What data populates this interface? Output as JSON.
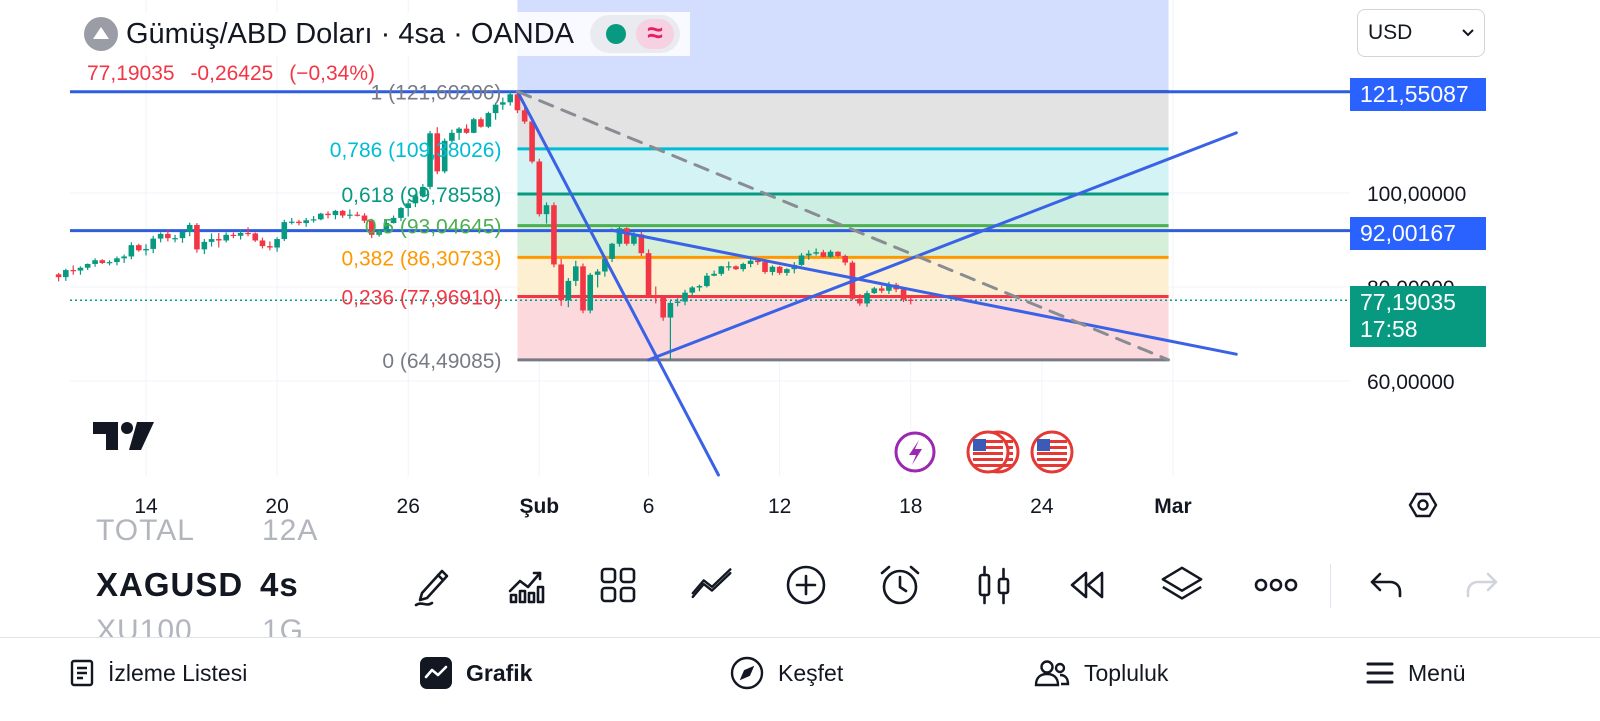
{
  "header": {
    "title": "Gümüş/ABD Doları · 4sa · OANDA",
    "wave_icon": "≈",
    "last_price": "77,19035",
    "change": "-0,26425",
    "change_pct": "(−0,34%)"
  },
  "currency_select": {
    "value": "USD",
    "icon": "chevron-down-icon"
  },
  "price_badges": [
    {
      "value": "121,55087",
      "color": "#2962ff"
    },
    {
      "value": "92,00167",
      "color": "#2962ff"
    },
    {
      "value": "77,19035",
      "sub": "17:58",
      "color": "#089981"
    }
  ],
  "chart_data": {
    "type": "candlestick",
    "x_tick_labels": [
      "14",
      "20",
      "26",
      "Şub",
      "6",
      "12",
      "18",
      "24",
      "Mar"
    ],
    "x_tick_days": [
      14,
      20,
      26,
      32,
      37,
      43,
      49,
      55,
      61
    ],
    "y_tick_labels": [
      "100,00000",
      "80,00000",
      "60,00000"
    ],
    "y_ticks": [
      100,
      80,
      60
    ],
    "ylim": [
      42.6,
      142.3
    ],
    "xlim": [
      10,
      66
    ],
    "current_price": 77.19035,
    "horizontal_lines": [
      121.55087,
      92.00167
    ],
    "fibonacci": {
      "x_range": [
        31.0,
        60.8
      ],
      "levels": [
        {
          "ratio": "1",
          "value": 121.60206,
          "label": "1 (121,60206)",
          "color": "#787b86"
        },
        {
          "ratio": "0,786",
          "value": 109.38026,
          "label": "0,786 (109,38026)",
          "color": "#00bcd4"
        },
        {
          "ratio": "0,618",
          "value": 99.78558,
          "label": "0,618 (99,78558)",
          "color": "#089981"
        },
        {
          "ratio": "0,5",
          "value": 93.04645,
          "label": "0,5 (93,04645)",
          "color": "#4caf50"
        },
        {
          "ratio": "0,382",
          "value": 86.30733,
          "label": "0,382 (86,30733)",
          "color": "#ff9800"
        },
        {
          "ratio": "0,236",
          "value": 77.9691,
          "label": "0,236 (77,96910)",
          "color": "#f23645"
        },
        {
          "ratio": "0",
          "value": 64.49085,
          "label": "0 (64,49085)",
          "color": "#787b86"
        }
      ]
    },
    "trend_lines": [
      {
        "from": [
          31.0,
          121.6
        ],
        "to": [
          40.2,
          40.0
        ],
        "style": "solid"
      },
      {
        "from": [
          35.3,
          92.1
        ],
        "to": [
          63.9,
          65.7
        ],
        "style": "solid"
      },
      {
        "from": [
          37.0,
          64.5
        ],
        "to": [
          63.9,
          112.8
        ],
        "style": "solid"
      },
      {
        "from": [
          31.0,
          121.6
        ],
        "to": [
          60.8,
          64.5
        ],
        "style": "dashed"
      }
    ],
    "candles": [
      [
        10.0,
        82.7,
        83.0,
        81.2,
        82.1
      ],
      [
        10.33,
        82.1,
        83.9,
        81.3,
        83.6
      ],
      [
        10.67,
        83.6,
        84.6,
        82.6,
        83.5
      ],
      [
        11.0,
        83.5,
        84.4,
        82.6,
        84.1
      ],
      [
        11.33,
        84.1,
        85.0,
        83.6,
        84.9
      ],
      [
        11.67,
        84.9,
        86.1,
        84.3,
        85.7
      ],
      [
        12.0,
        85.7,
        85.9,
        84.9,
        85.1
      ],
      [
        12.33,
        85.1,
        85.7,
        84.6,
        85.3
      ],
      [
        12.67,
        85.3,
        86.5,
        84.6,
        86.1
      ],
      [
        13.0,
        86.1,
        86.9,
        85.1,
        86.5
      ],
      [
        13.33,
        86.5,
        89.5,
        85.9,
        88.9
      ],
      [
        13.67,
        88.9,
        89.2,
        87.5,
        87.8
      ],
      [
        14.0,
        87.8,
        89.1,
        86.7,
        88.1
      ],
      [
        14.33,
        88.1,
        90.9,
        87.2,
        90.3
      ],
      [
        14.67,
        90.3,
        91.6,
        89.5,
        91.3
      ],
      [
        15.0,
        91.3,
        92.2,
        89.7,
        90.4
      ],
      [
        15.33,
        90.4,
        91.1,
        89.5,
        90.4
      ],
      [
        15.67,
        90.4,
        92.2,
        89.4,
        91.7
      ],
      [
        16.0,
        91.7,
        93.7,
        90.8,
        93.2
      ],
      [
        16.33,
        93.2,
        93.6,
        87.3,
        88.0
      ],
      [
        16.67,
        88.0,
        90.2,
        87.0,
        89.6
      ],
      [
        17.0,
        89.6,
        91.4,
        88.6,
        90.2
      ],
      [
        17.33,
        90.2,
        91.5,
        88.4,
        89.9
      ],
      [
        17.67,
        89.9,
        91.6,
        89.5,
        91.1
      ],
      [
        18.0,
        91.1,
        91.6,
        90.4,
        90.9
      ],
      [
        18.33,
        90.9,
        92.2,
        90.1,
        91.5
      ],
      [
        18.67,
        91.5,
        92.7,
        90.8,
        91.4
      ],
      [
        19.0,
        91.4,
        91.6,
        89.6,
        89.9
      ],
      [
        19.33,
        89.9,
        90.5,
        88.2,
        88.7
      ],
      [
        19.67,
        88.7,
        89.7,
        87.8,
        88.4
      ],
      [
        20.0,
        88.4,
        90.6,
        87.5,
        90.2
      ],
      [
        20.33,
        90.2,
        94.3,
        89.8,
        93.8
      ],
      [
        20.67,
        93.8,
        94.7,
        93.3,
        93.9
      ],
      [
        21.0,
        93.9,
        94.3,
        93.1,
        93.6
      ],
      [
        21.33,
        93.6,
        94.7,
        92.8,
        94.2
      ],
      [
        21.67,
        94.2,
        95.1,
        93.7,
        94.4
      ],
      [
        22.0,
        94.4,
        95.8,
        94.2,
        95.6
      ],
      [
        22.33,
        95.6,
        96.1,
        94.6,
        95.3
      ],
      [
        22.67,
        95.3,
        96.4,
        94.4,
        96.2
      ],
      [
        23.0,
        96.2,
        96.4,
        94.7,
        95.2
      ],
      [
        23.33,
        95.2,
        96.5,
        94.5,
        95.4
      ],
      [
        23.67,
        95.4,
        96.0,
        95.0,
        95.2
      ],
      [
        24.0,
        95.2,
        95.7,
        93.6,
        94.1
      ],
      [
        24.33,
        94.1,
        94.5,
        90.4,
        91.1
      ],
      [
        24.67,
        91.1,
        92.3,
        90.7,
        92.0
      ],
      [
        25.0,
        92.0,
        94.2,
        91.4,
        93.6
      ],
      [
        25.33,
        93.6,
        95.2,
        93.5,
        94.7
      ],
      [
        25.67,
        94.7,
        97.0,
        94.0,
        96.8
      ],
      [
        26.0,
        96.8,
        98.4,
        95.0,
        97.8
      ],
      [
        26.33,
        97.8,
        99.8,
        97.0,
        99.3
      ],
      [
        26.67,
        99.3,
        101.9,
        99.0,
        101.3
      ],
      [
        27.0,
        101.3,
        113.2,
        100.8,
        112.7
      ],
      [
        27.33,
        112.7,
        114.0,
        104.0,
        104.6
      ],
      [
        27.67,
        104.6,
        111.6,
        104.2,
        111.1
      ],
      [
        28.0,
        111.1,
        113.5,
        110.7,
        112.8
      ],
      [
        28.33,
        112.8,
        114.0,
        111.3,
        113.7
      ],
      [
        28.67,
        113.7,
        114.6,
        112.6,
        112.8
      ],
      [
        29.0,
        112.8,
        116.0,
        112.7,
        115.7
      ],
      [
        29.33,
        115.7,
        116.1,
        113.9,
        114.1
      ],
      [
        29.67,
        114.1,
        117.3,
        113.8,
        117.0
      ],
      [
        30.0,
        117.0,
        119.2,
        115.6,
        118.8
      ],
      [
        30.33,
        118.8,
        120.3,
        117.7,
        119.3
      ],
      [
        30.67,
        119.3,
        121.6,
        118.6,
        121.0
      ],
      [
        31.0,
        121.0,
        121.6,
        117.0,
        117.6
      ],
      [
        31.33,
        117.6,
        118.3,
        114.7,
        115.2
      ],
      [
        31.67,
        115.2,
        116.2,
        106.3,
        106.7
      ],
      [
        32.0,
        106.7,
        107.3,
        95.0,
        95.5
      ],
      [
        32.33,
        95.5,
        98.0,
        93.5,
        97.4
      ],
      [
        32.67,
        97.4,
        98.0,
        84.2,
        84.8
      ],
      [
        33.0,
        84.8,
        86.0,
        76.0,
        77.2
      ],
      [
        33.33,
        77.2,
        81.9,
        75.7,
        81.3
      ],
      [
        33.67,
        81.3,
        85.6,
        80.2,
        84.4
      ],
      [
        34.0,
        84.4,
        85.0,
        74.4,
        75.0
      ],
      [
        34.33,
        75.0,
        83.0,
        74.4,
        82.6
      ],
      [
        34.67,
        82.6,
        83.8,
        79.9,
        83.3
      ],
      [
        35.0,
        83.3,
        86.4,
        82.2,
        86.0
      ],
      [
        35.33,
        86.0,
        89.4,
        85.3,
        89.2
      ],
      [
        35.67,
        89.2,
        92.9,
        88.6,
        92.5
      ],
      [
        36.0,
        92.5,
        92.7,
        88.8,
        89.2
      ],
      [
        36.33,
        89.2,
        91.7,
        88.8,
        91.2
      ],
      [
        36.67,
        91.2,
        91.7,
        86.6,
        87.2
      ],
      [
        37.0,
        87.2,
        88.0,
        77.8,
        78.2
      ],
      [
        37.33,
        78.2,
        80.1,
        76.5,
        78.0
      ],
      [
        37.67,
        78.0,
        78.3,
        72.8,
        73.5
      ],
      [
        38.0,
        73.5,
        77.0,
        64.5,
        76.6
      ],
      [
        38.33,
        76.6,
        77.6,
        75.9,
        76.9
      ],
      [
        38.67,
        76.9,
        79.4,
        76.1,
        78.8
      ],
      [
        39.0,
        78.8,
        80.2,
        78.1,
        79.9
      ],
      [
        39.33,
        79.9,
        80.5,
        79.1,
        80.2
      ],
      [
        39.67,
        80.2,
        83.0,
        79.9,
        82.4
      ],
      [
        40.0,
        82.4,
        83.5,
        82.3,
        82.8
      ],
      [
        40.33,
        82.8,
        84.5,
        82.4,
        84.4
      ],
      [
        40.67,
        84.4,
        85.4,
        83.5,
        84.4
      ],
      [
        41.0,
        84.4,
        84.6,
        83.6,
        83.8
      ],
      [
        41.33,
        83.8,
        85.2,
        83.3,
        84.9
      ],
      [
        41.67,
        84.9,
        86.4,
        84.2,
        85.6
      ],
      [
        42.0,
        85.6,
        86.2,
        84.7,
        85.3
      ],
      [
        42.33,
        85.3,
        85.5,
        82.8,
        83.2
      ],
      [
        42.67,
        83.2,
        84.6,
        82.5,
        84.3
      ],
      [
        43.0,
        84.3,
        84.5,
        82.6,
        83.0
      ],
      [
        43.33,
        83.0,
        84.0,
        82.4,
        83.8
      ],
      [
        43.67,
        83.8,
        85.3,
        82.9,
        84.7
      ],
      [
        44.0,
        84.7,
        87.2,
        84.5,
        86.7
      ],
      [
        44.33,
        86.7,
        87.8,
        85.8,
        87.1
      ],
      [
        44.67,
        87.1,
        88.2,
        86.7,
        87.4
      ],
      [
        45.0,
        87.4,
        87.9,
        86.3,
        86.4
      ],
      [
        45.33,
        86.4,
        87.9,
        86.2,
        87.5
      ],
      [
        45.67,
        87.5,
        87.6,
        86.3,
        86.6
      ],
      [
        46.0,
        86.6,
        86.9,
        84.6,
        85.2
      ],
      [
        46.33,
        85.2,
        85.6,
        77.2,
        77.5
      ],
      [
        46.67,
        77.5,
        78.5,
        76.0,
        76.5
      ],
      [
        47.0,
        76.5,
        79.2,
        75.8,
        78.7
      ],
      [
        47.33,
        78.7,
        80.0,
        78.5,
        79.7
      ],
      [
        47.67,
        79.7,
        80.3,
        78.7,
        79.2
      ],
      [
        48.0,
        79.2,
        81.1,
        78.5,
        80.5
      ],
      [
        48.33,
        80.5,
        80.9,
        78.9,
        79.5
      ],
      [
        48.67,
        79.5,
        79.9,
        76.8,
        77.3
      ],
      [
        49.0,
        77.3,
        78.3,
        76.3,
        77.2
      ]
    ]
  },
  "event_markers": [
    {
      "icon": "lightning-icon",
      "color": "#9c27b0"
    },
    {
      "icon": "us-flag-icon"
    },
    {
      "icon": "us-flag-icon"
    }
  ],
  "settings_icon": "hexagon-settings-icon",
  "watchlist": {
    "faded_top": [
      "TOTAL",
      "12A"
    ],
    "main": [
      "XAGUSD",
      "4s"
    ],
    "faded_bottom": [
      "XU100",
      "1G"
    ]
  },
  "toolbar": [
    {
      "icon": "pencil-draw-icon"
    },
    {
      "icon": "indicators-icon"
    },
    {
      "icon": "templates-grid-icon"
    },
    {
      "icon": "trend-lines-icon"
    },
    {
      "icon": "add-circle-icon"
    },
    {
      "icon": "alarm-clock-icon"
    },
    {
      "icon": "candles-icon"
    },
    {
      "icon": "replay-icon"
    },
    {
      "icon": "layers-icon"
    },
    {
      "icon": "more-icon"
    },
    {
      "icon": "undo-icon"
    },
    {
      "icon": "redo-icon"
    }
  ],
  "bottom_nav": [
    {
      "label": "İzleme Listesi",
      "icon": "watchlist-icon"
    },
    {
      "label": "Grafik",
      "icon": "chart-icon"
    },
    {
      "label": "Keşfet",
      "icon": "compass-icon"
    },
    {
      "label": "Topluluk",
      "icon": "community-icon"
    },
    {
      "label": "Menü",
      "icon": "hamburger-icon"
    }
  ]
}
